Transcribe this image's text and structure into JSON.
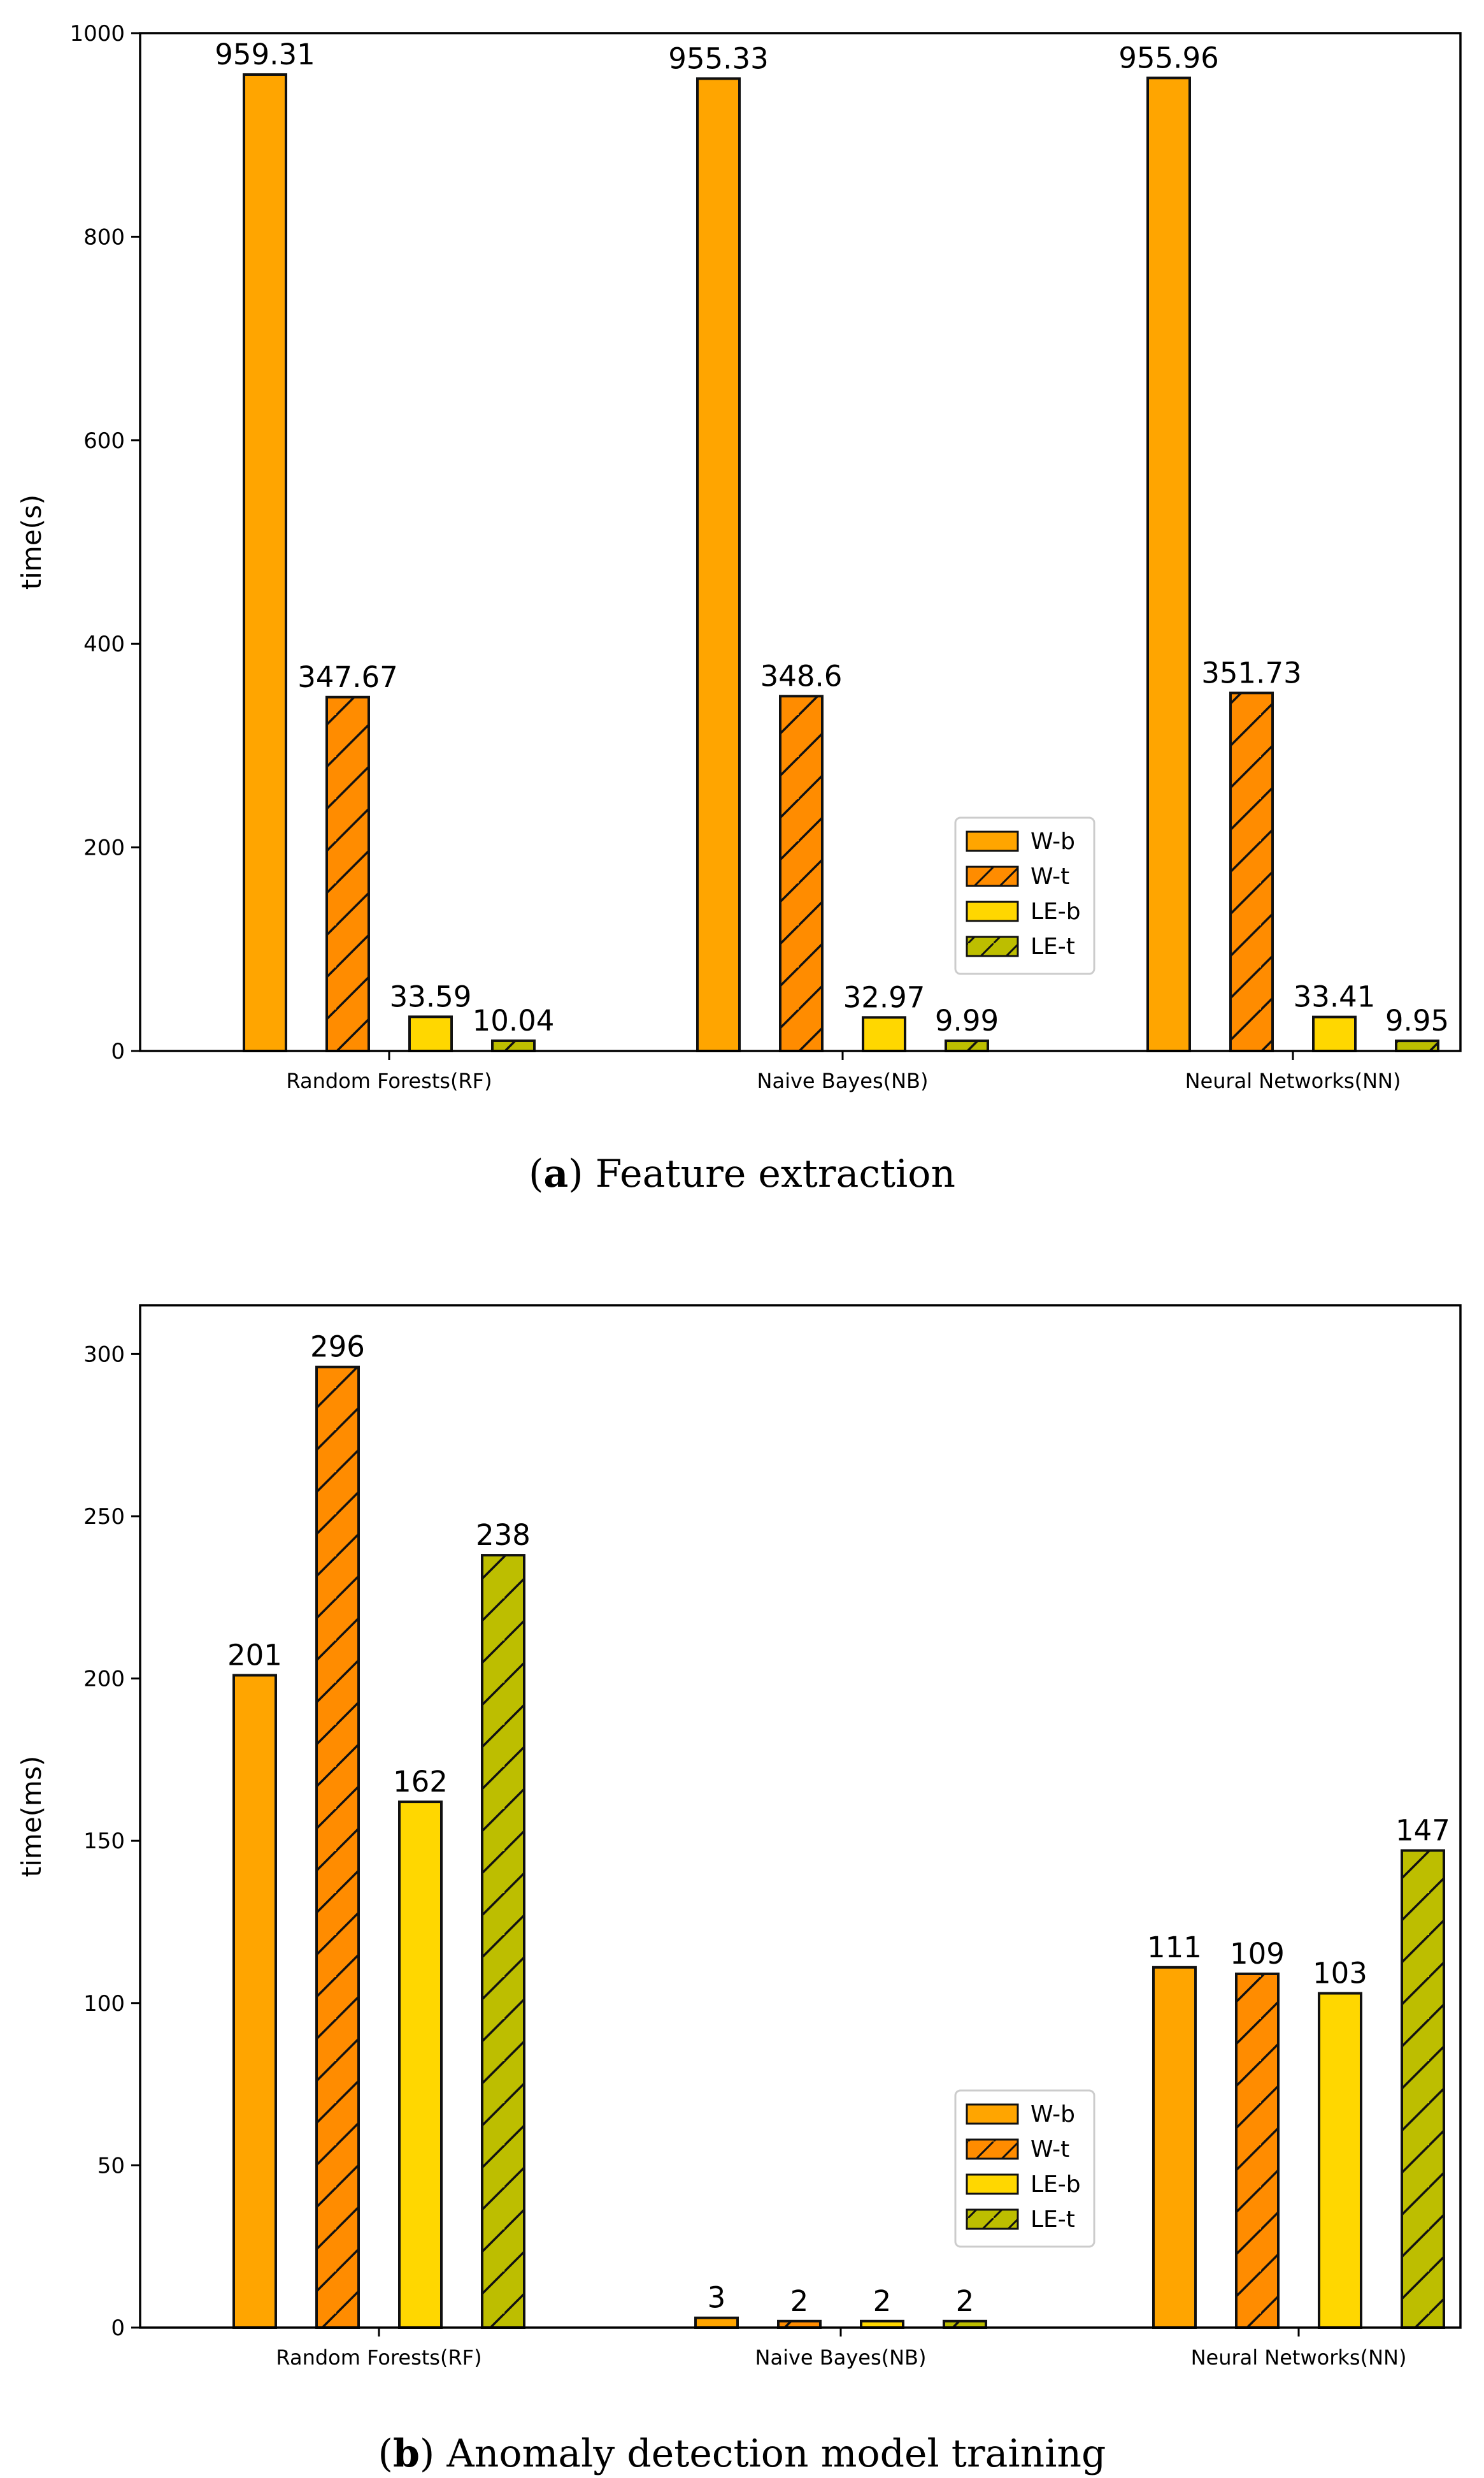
{
  "chart_data": [
    {
      "type": "bar",
      "caption_label": "(a)",
      "caption_text": "Feature extraction",
      "ylabel": "time(s)",
      "categories": [
        "Random Forests(RF)",
        "Naive Bayes(NB)",
        "Neural Networks(NN)"
      ],
      "ylim": [
        0,
        1000
      ],
      "yticks": [
        0,
        200,
        400,
        600,
        800,
        1000
      ],
      "legend_position": "center-right",
      "series": [
        {
          "name": "W-b",
          "values": [
            959.31,
            955.33,
            955.96
          ],
          "labels": [
            "959.31",
            "955.33",
            "955.96"
          ],
          "color": "#FFA500",
          "hatch": false
        },
        {
          "name": "W-t",
          "values": [
            347.67,
            348.6,
            351.73
          ],
          "labels": [
            "347.67",
            "348.6",
            "351.73"
          ],
          "color": "#FF8C00",
          "hatch": true
        },
        {
          "name": "LE-b",
          "values": [
            33.59,
            32.97,
            33.41
          ],
          "labels": [
            "33.59",
            "32.97",
            "33.41"
          ],
          "color": "#FFD700",
          "hatch": false
        },
        {
          "name": "LE-t",
          "values": [
            10.04,
            9.99,
            9.95
          ],
          "labels": [
            "10.04",
            "9.99",
            "9.95"
          ],
          "color": "#BDBE00",
          "hatch": true
        }
      ]
    },
    {
      "type": "bar",
      "caption_label": "(b)",
      "caption_text": "Anomaly detection model training",
      "ylabel": "time(ms)",
      "categories": [
        "Random Forests(RF)",
        "Naive Bayes(NB)",
        "Neural Networks(NN)"
      ],
      "ylim": [
        0,
        315
      ],
      "yticks": [
        0,
        50,
        100,
        150,
        200,
        250,
        300
      ],
      "legend_position": "center-right",
      "series": [
        {
          "name": "W-b",
          "values": [
            201,
            3,
            111
          ],
          "labels": [
            "201",
            "3",
            "111"
          ],
          "color": "#FFA500",
          "hatch": false
        },
        {
          "name": "W-t",
          "values": [
            296,
            2,
            109
          ],
          "labels": [
            "296",
            "2",
            "109"
          ],
          "color": "#FF8C00",
          "hatch": true
        },
        {
          "name": "LE-b",
          "values": [
            162,
            2,
            103
          ],
          "labels": [
            "162",
            "2",
            "103"
          ],
          "color": "#FFD700",
          "hatch": false
        },
        {
          "name": "LE-t",
          "values": [
            238,
            2,
            147
          ],
          "labels": [
            "238",
            "2",
            "147"
          ],
          "color": "#BDBE00",
          "hatch": true
        }
      ]
    }
  ]
}
